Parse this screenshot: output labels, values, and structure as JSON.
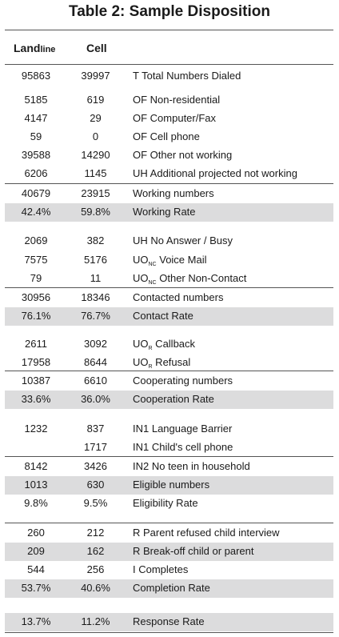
{
  "title": "Table 2: Sample Disposition",
  "headers": {
    "landline_main": "Land",
    "landline_small": "line",
    "cell": "Cell"
  },
  "rows": [
    {
      "landline": "95863",
      "cell": "39997",
      "label": "T Total Numbers Dialed"
    },
    {
      "landline": "5185",
      "cell": "619",
      "label": "OF Non-residential"
    },
    {
      "landline": "4147",
      "cell": "29",
      "label": "OF Computer/Fax"
    },
    {
      "landline": "59",
      "cell": "0",
      "label": "OF Cell phone"
    },
    {
      "landline": "39588",
      "cell": "14290",
      "label": "OF Other not working"
    },
    {
      "landline": "6206",
      "cell": "1145",
      "label": "UH Additional projected not working"
    },
    {
      "landline": "40679",
      "cell": "23915",
      "label": "Working numbers"
    },
    {
      "landline": "42.4%",
      "cell": "59.8%",
      "label": "Working Rate"
    },
    {
      "landline": "2069",
      "cell": "382",
      "label": "UH No Answer / Busy"
    },
    {
      "landline": "7575",
      "cell": "5176",
      "label_pre": "UO",
      "label_sub": "NC",
      "label_post": " Voice Mail"
    },
    {
      "landline": "79",
      "cell": "11",
      "label_pre": "UO",
      "label_sub": "NC",
      "label_post": " Other Non-Contact"
    },
    {
      "landline": "30956",
      "cell": "18346",
      "label": "Contacted numbers"
    },
    {
      "landline": "76.1%",
      "cell": "76.7%",
      "label": "Contact Rate"
    },
    {
      "landline": "2611",
      "cell": "3092",
      "label_pre": "UO",
      "label_sub": "R",
      "label_post": " Callback"
    },
    {
      "landline": "17958",
      "cell": "8644",
      "label_pre": "UO",
      "label_sub": "R",
      "label_post": " Refusal"
    },
    {
      "landline": "10387",
      "cell": "6610",
      "label": "Cooperating numbers"
    },
    {
      "landline": "33.6%",
      "cell": "36.0%",
      "label": "Cooperation Rate"
    },
    {
      "landline": "1232",
      "cell": "837",
      "label": "IN1 Language Barrier"
    },
    {
      "landline": "",
      "cell": "1717",
      "label": "IN1 Child's cell phone"
    },
    {
      "landline": "8142",
      "cell": "3426",
      "label": "IN2 No teen in household"
    },
    {
      "landline": "1013",
      "cell": "630",
      "label": "Eligible numbers"
    },
    {
      "landline": "9.8%",
      "cell": "9.5%",
      "label": "Eligibility Rate"
    },
    {
      "landline": "260",
      "cell": "212",
      "label": "R Parent refused child interview"
    },
    {
      "landline": "209",
      "cell": "162",
      "label": "R Break-off child or parent"
    },
    {
      "landline": "544",
      "cell": "256",
      "label": "I Completes"
    },
    {
      "landline": "53.7%",
      "cell": "40.6%",
      "label": "Completion Rate"
    },
    {
      "landline": "13.7%",
      "cell": "11.2%",
      "label": "Response Rate"
    }
  ]
}
